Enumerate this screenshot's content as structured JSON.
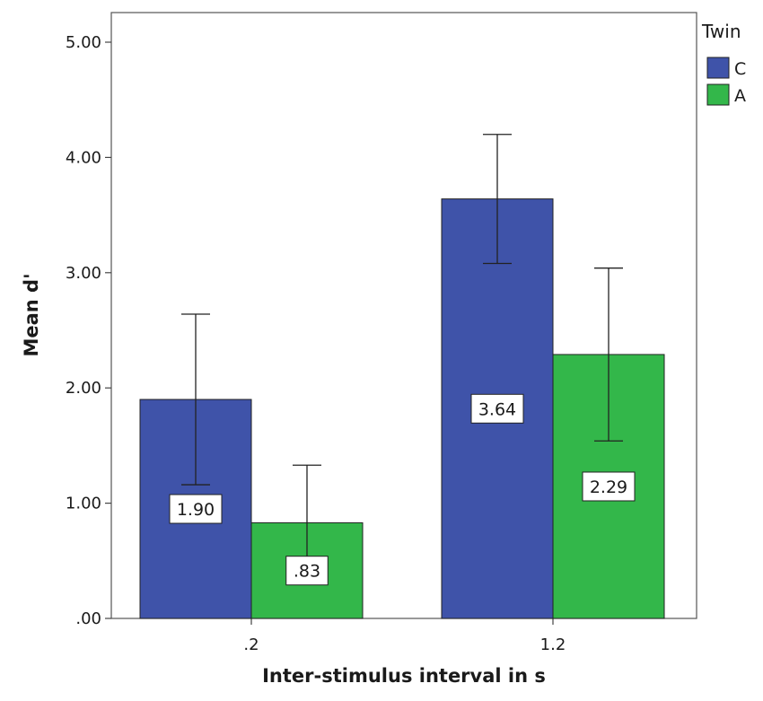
{
  "chart_data": {
    "type": "bar",
    "categories": [
      ".2",
      "1.2"
    ],
    "xlabel": "Inter-stimulus interval in s",
    "ylabel": "Mean d'",
    "ylim": [
      0,
      5
    ],
    "yticks": [
      0,
      1,
      2,
      3,
      4,
      5
    ],
    "ytick_labels": [
      ".00",
      "1.00",
      "2.00",
      "3.00",
      "4.00",
      "5.00"
    ],
    "grid": false,
    "legend": {
      "title": "Twin",
      "position": "top-right"
    },
    "series": [
      {
        "name": "C",
        "color": "#3f53a9",
        "values": [
          1.9,
          3.64
        ],
        "labels": [
          "1.90",
          "3.64"
        ],
        "error_low": [
          1.16,
          3.08
        ],
        "error_high": [
          2.64,
          4.2
        ]
      },
      {
        "name": "A",
        "color": "#33b74a",
        "values": [
          0.83,
          2.29
        ],
        "labels": [
          ".83",
          "2.29"
        ],
        "error_low": [
          0.31,
          1.54
        ],
        "error_high": [
          1.33,
          3.04
        ]
      }
    ]
  }
}
